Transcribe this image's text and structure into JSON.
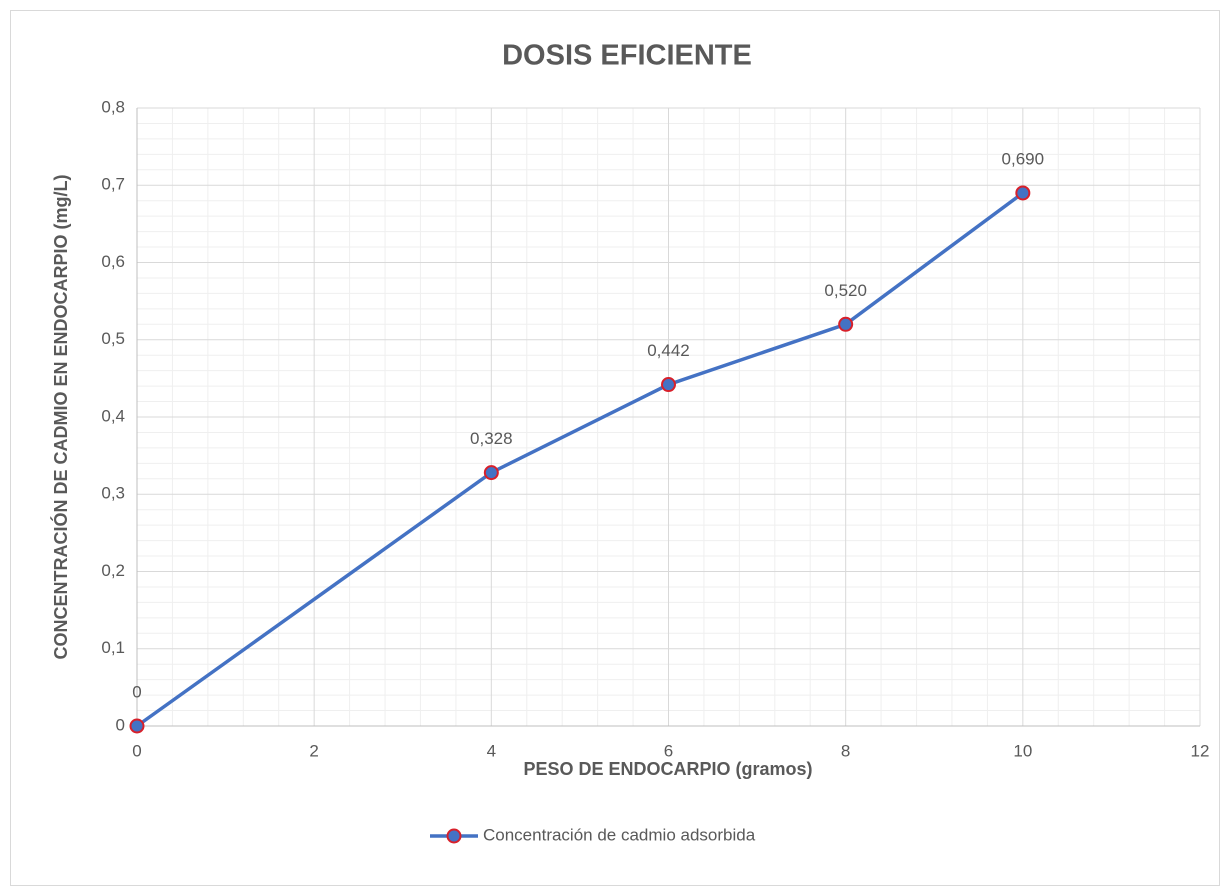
{
  "chart_data": {
    "type": "line",
    "title": "DOSIS EFICIENTE",
    "x_label": "PESO DE ENDOCARPIO (gramos)",
    "y_label": "CONCENTRACIÓN DE CADMIO EN ENDOCARPIO (mg/L)",
    "x": [
      0,
      4,
      6,
      8,
      10
    ],
    "series": [
      {
        "name": "Concentración de cadmio adsorbida",
        "color": "#4472c4",
        "marker_edge_color": "#d8202a",
        "values": [
          0,
          0.328,
          0.442,
          0.52,
          0.69
        ],
        "value_labels": [
          "0",
          "0,328",
          "0,442",
          "0,520",
          "0,690"
        ]
      }
    ],
    "xlim": [
      0,
      12
    ],
    "xticks": [
      0,
      2,
      4,
      6,
      8,
      10,
      12
    ],
    "ylim": [
      0,
      0.8
    ],
    "yticks": [
      0,
      {
        "value": 0.1,
        "label": "0,1"
      },
      {
        "value": 0.2,
        "label": "0,2"
      },
      {
        "value": 0.3,
        "label": "0,3"
      },
      {
        "value": 0.4,
        "label": "0,4"
      },
      {
        "value": 0.5,
        "label": "0,5"
      },
      {
        "value": 0.6,
        "label": "0,6"
      },
      {
        "value": 0.7,
        "label": "0,7"
      },
      {
        "value": 0.8,
        "label": "0,8"
      }
    ],
    "grid": true,
    "minor_grid": true,
    "legend": "bottom"
  }
}
